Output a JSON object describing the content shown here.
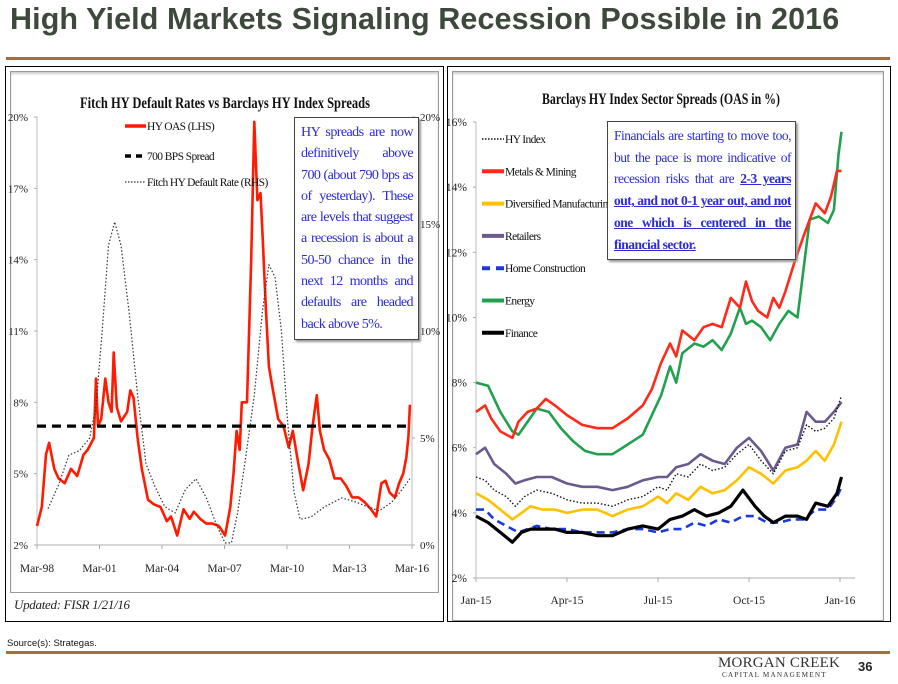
{
  "slide": {
    "title": "High Yield Markets Signaling Recession Possible in 2016",
    "source": "Source(s):  Strategas.",
    "logo_main": "MORGAN CREEK",
    "logo_sub": "CAPITAL MANAGEMENT",
    "page_number": "36",
    "updated": "Updated:  FISR 1/21/16",
    "colors": {
      "title": "#3d4a3b",
      "rule": "#a86c3e",
      "note_text": "#2b2bd9"
    }
  },
  "notes": {
    "left": "HY spreads are now definitively above 700 (about 790 bps as of yesterday). These are levels that suggest a recession is about a 50-50 chance in the next 12 months and defaults are headed back above 5%.",
    "right_plain": "Financials are starting to move too, but the pace is more indicative of recession risks that are ",
    "right_underlined": "2-3 years out, and not 0-1 year out, and not one which is centered in the financial sector."
  },
  "chart_data": [
    {
      "type": "line",
      "title": "Fitch HY Default Rates vs Barclays HY Index Spreads",
      "xlabel": "",
      "ylabel": "",
      "x_ticks": [
        "Mar-98",
        "Mar-01",
        "Mar-04",
        "Mar-07",
        "Mar-10",
        "Mar-13",
        "Mar-16"
      ],
      "x_range": [
        1998.17,
        2016.17
      ],
      "y_left": {
        "ticks": [
          "2%",
          "5%",
          "8%",
          "11%",
          "14%",
          "17%",
          "20%"
        ],
        "range": [
          2,
          20
        ]
      },
      "y_right": {
        "ticks": [
          "0%",
          "5%",
          "10%",
          "15%",
          "20%"
        ],
        "range": [
          0,
          20
        ]
      },
      "grid": false,
      "legend_position": "top-left",
      "series": [
        {
          "name": "HY OAS (LHS)",
          "axis": "left",
          "color": "#ff1a00",
          "style": "solid",
          "x": [
            1998.17,
            1998.4,
            1998.6,
            1998.75,
            1999.0,
            1999.2,
            1999.5,
            1999.8,
            2000.1,
            2000.4,
            2000.6,
            2000.9,
            2001.0,
            2001.1,
            2001.25,
            2001.45,
            2001.6,
            2001.75,
            2001.85,
            2002.0,
            2002.2,
            2002.5,
            2002.65,
            2002.8,
            2003.0,
            2003.2,
            2003.5,
            2003.8,
            2004.1,
            2004.4,
            2004.6,
            2004.9,
            2005.2,
            2005.5,
            2005.7,
            2006.0,
            2006.3,
            2006.6,
            2006.9,
            2007.2,
            2007.45,
            2007.6,
            2007.75,
            2007.9,
            2008.0,
            2008.25,
            2008.45,
            2008.6,
            2008.75,
            2008.9,
            2009.0,
            2009.15,
            2009.3,
            2009.5,
            2009.75,
            2010.0,
            2010.25,
            2010.45,
            2010.7,
            2010.95,
            2011.2,
            2011.4,
            2011.6,
            2011.75,
            2011.95,
            2012.2,
            2012.45,
            2012.75,
            2013.0,
            2013.3,
            2013.6,
            2013.9,
            2014.2,
            2014.45,
            2014.7,
            2014.9,
            2015.1,
            2015.35,
            2015.55,
            2015.75,
            2015.9,
            2016.0,
            2016.07
          ],
          "values": [
            2.8,
            3.6,
            5.8,
            6.3,
            5.2,
            4.8,
            4.6,
            5.2,
            4.9,
            5.8,
            6.0,
            6.5,
            9.0,
            7.0,
            7.3,
            9.0,
            8.0,
            7.6,
            10.1,
            7.8,
            7.2,
            7.6,
            8.5,
            8.2,
            6.5,
            5.2,
            3.9,
            3.7,
            3.6,
            3.0,
            3.2,
            2.4,
            3.5,
            3.1,
            3.4,
            3.1,
            2.9,
            2.9,
            2.8,
            2.4,
            3.6,
            5.0,
            6.8,
            6.0,
            8.0,
            8.0,
            14.0,
            19.8,
            16.5,
            16.8,
            15.0,
            12.0,
            9.5,
            8.5,
            7.3,
            7.0,
            6.1,
            6.8,
            5.5,
            4.3,
            5.4,
            7.0,
            8.3,
            6.8,
            6.0,
            5.6,
            4.8,
            4.8,
            4.5,
            4.0,
            4.0,
            3.8,
            3.5,
            3.2,
            4.6,
            4.7,
            4.2,
            4.0,
            4.6,
            5.0,
            5.7,
            6.6,
            7.9
          ]
        },
        {
          "name": "700 BPS Spread",
          "axis": "left",
          "color": "#000000",
          "style": "dashed",
          "x": [
            1998.17,
            2016.07
          ],
          "values": [
            7.0,
            7.0
          ]
        },
        {
          "name": "Fitch HY Default Rate (RHS)",
          "axis": "right",
          "color": "#333333",
          "style": "dotted",
          "x": [
            1998.7,
            1999.2,
            1999.7,
            2000.2,
            2000.7,
            2001.0,
            2001.3,
            2001.6,
            2001.9,
            2002.2,
            2002.6,
            2003.0,
            2003.4,
            2003.8,
            2004.3,
            2004.8,
            2005.3,
            2005.8,
            2006.3,
            2006.8,
            2007.2,
            2007.5,
            2007.8,
            2008.2,
            2008.6,
            2009.0,
            2009.3,
            2009.6,
            2009.9,
            2010.2,
            2010.5,
            2010.8,
            2011.3,
            2012.0,
            2012.8,
            2013.5,
            2014.0,
            2014.6,
            2015.2,
            2015.7,
            2016.07
          ],
          "values": [
            1.7,
            2.8,
            4.2,
            4.4,
            5.0,
            6.5,
            10.0,
            14.0,
            15.1,
            14.0,
            10.8,
            7.0,
            3.8,
            2.8,
            1.8,
            1.5,
            2.6,
            3.1,
            2.2,
            0.9,
            0.1,
            0.1,
            1.5,
            4.2,
            7.0,
            11.0,
            13.1,
            12.5,
            10.0,
            5.8,
            2.5,
            1.2,
            1.3,
            1.8,
            2.2,
            2.0,
            1.8,
            1.6,
            2.0,
            2.6,
            3.1
          ]
        }
      ]
    },
    {
      "type": "line",
      "title": "Barclays HY Index Sector Spreads (OAS in %)",
      "xlabel": "",
      "ylabel": "",
      "x_ticks": [
        "Jan-15",
        "Apr-15",
        "Jul-15",
        "Oct-15",
        "Jan-16"
      ],
      "x_range": [
        0,
        12
      ],
      "y": {
        "ticks": [
          "2%",
          "4%",
          "6%",
          "8%",
          "10%",
          "12%",
          "14%",
          "16%"
        ],
        "range": [
          2,
          16
        ]
      },
      "grid": false,
      "legend_position": "top-left",
      "series": [
        {
          "name": "HY Index",
          "color": "#111111",
          "style": "dotted",
          "x": [
            0,
            0.3,
            0.6,
            1.0,
            1.3,
            1.6,
            2.0,
            2.5,
            3.0,
            3.5,
            4.0,
            4.5,
            5.0,
            5.5,
            6.0,
            6.3,
            6.6,
            7.0,
            7.4,
            7.8,
            8.2,
            8.6,
            9.0,
            9.4,
            9.8,
            10.2,
            10.6,
            10.9,
            11.2,
            11.5,
            11.8,
            12.05
          ],
          "values": [
            5.1,
            5.0,
            4.7,
            4.5,
            4.2,
            4.5,
            4.7,
            4.6,
            4.4,
            4.3,
            4.3,
            4.2,
            4.4,
            4.5,
            4.8,
            4.7,
            5.2,
            5.1,
            5.5,
            5.3,
            5.4,
            5.8,
            6.1,
            5.6,
            5.2,
            5.9,
            6.0,
            6.7,
            6.5,
            6.6,
            6.9,
            7.6
          ]
        },
        {
          "name": "Metals & Mining",
          "color": "#ff2a1a",
          "style": "solid",
          "x": [
            0,
            0.3,
            0.5,
            0.8,
            1.2,
            1.4,
            1.7,
            2.0,
            2.3,
            2.6,
            3.0,
            3.5,
            4.0,
            4.5,
            5.0,
            5.5,
            5.8,
            6.1,
            6.4,
            6.6,
            6.8,
            7.2,
            7.5,
            7.8,
            8.1,
            8.4,
            8.7,
            8.9,
            9.1,
            9.3,
            9.6,
            9.8,
            10.0,
            10.2,
            10.5,
            10.8,
            11.0,
            11.2,
            11.5,
            11.7,
            11.9,
            12.05
          ],
          "values": [
            7.1,
            7.3,
            6.9,
            6.5,
            6.3,
            6.8,
            7.1,
            7.2,
            7.5,
            7.3,
            7.0,
            6.7,
            6.6,
            6.6,
            6.9,
            7.3,
            7.8,
            8.6,
            9.2,
            8.8,
            9.6,
            9.3,
            9.7,
            9.8,
            9.7,
            10.6,
            10.3,
            11.1,
            10.5,
            10.2,
            10.0,
            10.6,
            10.3,
            10.8,
            11.7,
            12.5,
            13.0,
            13.5,
            13.2,
            13.7,
            14.5,
            14.5
          ]
        },
        {
          "name": "Diversified Manufacturing",
          "color": "#ffc000",
          "style": "solid",
          "x": [
            0,
            0.4,
            0.8,
            1.2,
            1.5,
            1.8,
            2.2,
            2.6,
            3.0,
            3.5,
            4.0,
            4.5,
            5.0,
            5.5,
            6.0,
            6.3,
            6.6,
            7.0,
            7.4,
            7.8,
            8.2,
            8.6,
            9.0,
            9.4,
            9.8,
            10.2,
            10.6,
            10.9,
            11.2,
            11.5,
            11.8,
            12.05
          ],
          "values": [
            4.6,
            4.4,
            4.1,
            3.8,
            4.0,
            4.2,
            4.1,
            4.1,
            4.0,
            4.1,
            4.1,
            3.9,
            4.1,
            4.2,
            4.5,
            4.3,
            4.6,
            4.4,
            4.8,
            4.6,
            4.7,
            5.0,
            5.4,
            5.2,
            4.9,
            5.3,
            5.4,
            5.6,
            5.9,
            5.6,
            6.1,
            6.8
          ]
        },
        {
          "name": "Retailers",
          "color": "#6b5a8e",
          "style": "solid",
          "x": [
            0,
            0.3,
            0.6,
            1.0,
            1.3,
            1.6,
            2.0,
            2.5,
            3.0,
            3.5,
            4.0,
            4.5,
            5.0,
            5.5,
            6.0,
            6.3,
            6.6,
            7.0,
            7.4,
            7.8,
            8.2,
            8.6,
            9.0,
            9.4,
            9.8,
            10.2,
            10.6,
            10.9,
            11.2,
            11.5,
            11.8,
            12.05
          ],
          "values": [
            5.8,
            6.0,
            5.5,
            5.2,
            4.9,
            5.0,
            5.1,
            5.1,
            4.9,
            4.8,
            4.8,
            4.7,
            4.8,
            5.0,
            5.1,
            5.1,
            5.4,
            5.5,
            5.8,
            5.6,
            5.5,
            6.0,
            6.3,
            5.9,
            5.3,
            6.0,
            6.1,
            7.1,
            6.8,
            6.8,
            7.1,
            7.4
          ]
        },
        {
          "name": "Home Construction",
          "color": "#1a3adc",
          "style": "dashed",
          "x": [
            0,
            0.3,
            0.6,
            1.0,
            1.4,
            1.7,
            2.0,
            2.5,
            3.0,
            3.5,
            4.0,
            4.5,
            5.0,
            5.5,
            6.0,
            6.4,
            6.8,
            7.2,
            7.6,
            8.0,
            8.4,
            8.8,
            9.2,
            9.6,
            10.0,
            10.4,
            10.8,
            11.2,
            11.6,
            11.9,
            12.05
          ],
          "values": [
            4.1,
            4.1,
            3.8,
            3.6,
            3.4,
            3.5,
            3.6,
            3.5,
            3.5,
            3.4,
            3.4,
            3.4,
            3.5,
            3.5,
            3.4,
            3.5,
            3.5,
            3.7,
            3.6,
            3.8,
            3.7,
            3.9,
            3.9,
            3.7,
            3.7,
            3.8,
            3.8,
            4.1,
            4.1,
            4.5,
            4.8
          ]
        },
        {
          "name": "Energy",
          "color": "#23a04e",
          "style": "solid",
          "x": [
            0,
            0.4,
            0.8,
            1.2,
            1.4,
            1.7,
            2.0,
            2.4,
            2.8,
            3.2,
            3.6,
            4.0,
            4.5,
            5.0,
            5.5,
            5.8,
            6.1,
            6.4,
            6.6,
            6.8,
            7.2,
            7.5,
            7.8,
            8.1,
            8.4,
            8.7,
            8.9,
            9.1,
            9.4,
            9.7,
            10.0,
            10.3,
            10.6,
            10.8,
            11.0,
            11.3,
            11.6,
            11.8,
            11.95,
            12.05
          ],
          "values": [
            8.0,
            7.9,
            7.1,
            6.5,
            6.4,
            6.8,
            7.2,
            7.1,
            6.6,
            6.2,
            5.9,
            5.8,
            5.8,
            6.1,
            6.4,
            7.0,
            7.6,
            8.5,
            8.0,
            8.9,
            9.2,
            9.1,
            9.3,
            9.0,
            9.5,
            10.3,
            9.8,
            9.9,
            9.7,
            9.3,
            9.8,
            10.2,
            10.0,
            11.5,
            13.0,
            13.1,
            12.9,
            13.3,
            15.0,
            15.7
          ]
        },
        {
          "name": "Finance",
          "color": "#000000",
          "style": "solid",
          "x": [
            0,
            0.4,
            0.8,
            1.2,
            1.5,
            1.8,
            2.2,
            2.6,
            3.0,
            3.5,
            4.0,
            4.5,
            5.0,
            5.5,
            6.0,
            6.4,
            6.8,
            7.2,
            7.6,
            8.0,
            8.4,
            8.8,
            9.2,
            9.5,
            9.8,
            10.2,
            10.6,
            10.9,
            11.2,
            11.6,
            11.9,
            12.05
          ],
          "values": [
            3.9,
            3.7,
            3.4,
            3.1,
            3.4,
            3.5,
            3.5,
            3.5,
            3.4,
            3.4,
            3.3,
            3.3,
            3.5,
            3.6,
            3.5,
            3.8,
            3.9,
            4.1,
            3.9,
            4.0,
            4.2,
            4.7,
            4.2,
            3.9,
            3.7,
            3.9,
            3.9,
            3.8,
            4.3,
            4.2,
            4.6,
            5.1
          ]
        }
      ]
    }
  ]
}
